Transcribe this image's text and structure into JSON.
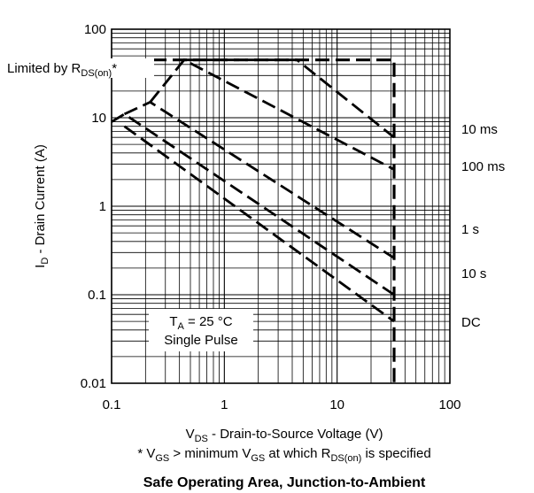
{
  "chart_data": {
    "type": "line",
    "title": "Safe Operating Area, Junction-to-Ambient",
    "xlabel": {
      "main": "V",
      "sub": "DS",
      "rest": " - Drain-to-Source Voltage (V)"
    },
    "ylabel": {
      "main": "I",
      "sub": "D",
      "rest": " - Drain Current (A)"
    },
    "footnote": {
      "p1": "* V",
      "s1": "GS",
      "p2": " > minimum V",
      "s2": "GS",
      "p3": " at which R",
      "s3": "DS(on)",
      "p4": " is specified"
    },
    "x_scale": "log",
    "y_scale": "log",
    "xlim": [
      0.1,
      100
    ],
    "ylim": [
      0.01,
      100
    ],
    "x_ticks": [
      {
        "value": 0.1,
        "label": "0.1"
      },
      {
        "value": 1,
        "label": "1"
      },
      {
        "value": 10,
        "label": "10"
      },
      {
        "value": 100,
        "label": "100"
      }
    ],
    "y_ticks": [
      {
        "value": 0.01,
        "label": "0.01"
      },
      {
        "value": 0.1,
        "label": "0.1"
      },
      {
        "value": 1,
        "label": "1"
      },
      {
        "value": 10,
        "label": "10"
      },
      {
        "value": 100,
        "label": "100"
      }
    ],
    "grid": true,
    "limit_label": {
      "main": "Limited by R",
      "sub": "DS(on)",
      "rest": "*"
    },
    "conditions": {
      "ta_main": "T",
      "ta_sub": "A",
      "ta_rest": " = 25 °C",
      "pulse": "Single Pulse"
    },
    "envelope": {
      "x": [
        0.1,
        32,
        32
      ],
      "y": [
        45,
        45,
        0.01
      ]
    },
    "series": [
      {
        "name": "10 ms",
        "x": [
          0.44,
          4.4,
          32
        ],
        "y": [
          45,
          45,
          6
        ]
      },
      {
        "name": "100 ms",
        "x": [
          0.22,
          0.44,
          32
        ],
        "y": [
          15,
          45,
          2.6
        ]
      },
      {
        "name": "1 s",
        "x": [
          0.13,
          0.22,
          32
        ],
        "y": [
          11,
          15,
          0.26
        ]
      },
      {
        "name": "10 s",
        "x": [
          0.1,
          0.13,
          32
        ],
        "y": [
          9,
          11,
          0.1
        ]
      },
      {
        "name": "DC",
        "x": [
          0.13,
          32
        ],
        "y": [
          8,
          0.05
        ]
      }
    ]
  }
}
